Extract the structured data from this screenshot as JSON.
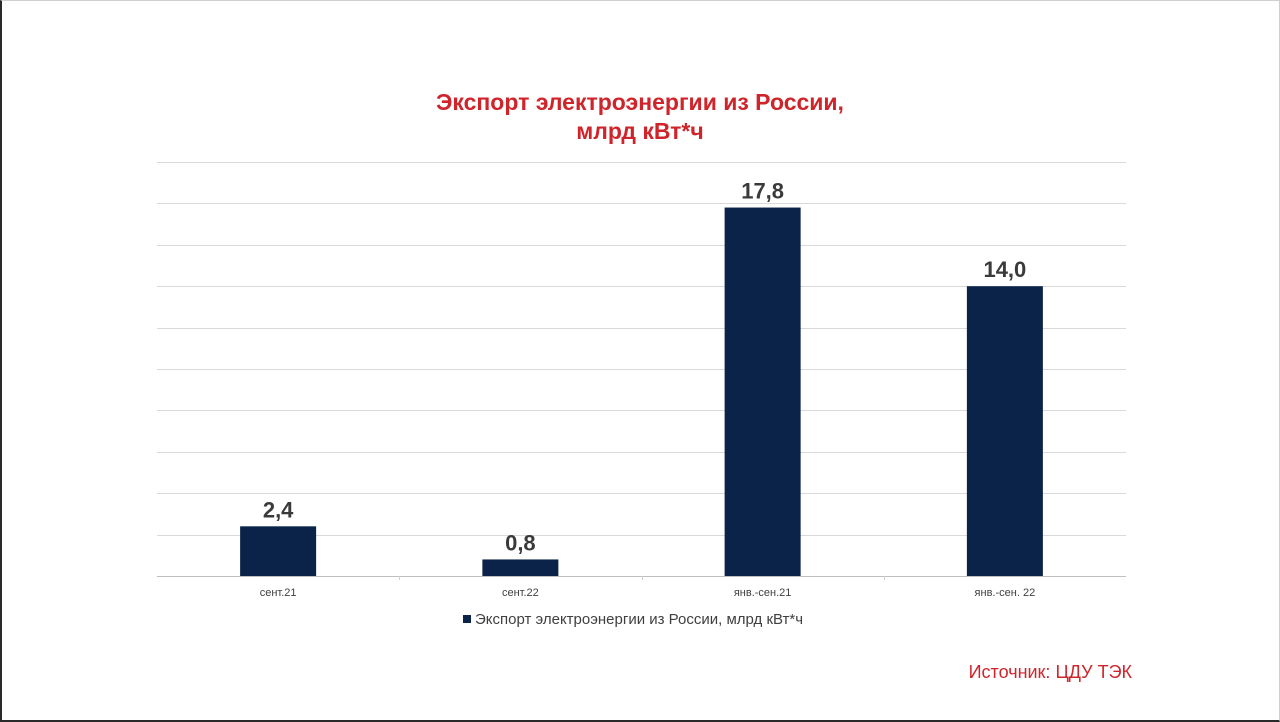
{
  "chart_data": {
    "type": "bar",
    "title": "Экспорт электроэнергии из России,\nмлрд кВт*ч",
    "title_lines": [
      "Экспорт электроэнергии из России,",
      "млрд кВт*ч"
    ],
    "categories": [
      "сент.21",
      "сент.22",
      "янв.-сен.21",
      "янв.-сен. 22"
    ],
    "series": [
      {
        "name": "Экспорт электроэнергии из России, млрд кВт*ч",
        "values": [
          2.4,
          0.8,
          17.8,
          14.0
        ],
        "labels": [
          "2,4",
          "0,8",
          "17,8",
          "14,0"
        ]
      }
    ],
    "ylim": [
      0,
      20
    ],
    "y_axis_visible": false,
    "grid": true,
    "legend_position": "bottom",
    "colors": {
      "bar": "#0b2348",
      "title": "#d0242b",
      "grid": "#d9d9d9"
    }
  },
  "source": "Источник: ЦДУ ТЭК"
}
